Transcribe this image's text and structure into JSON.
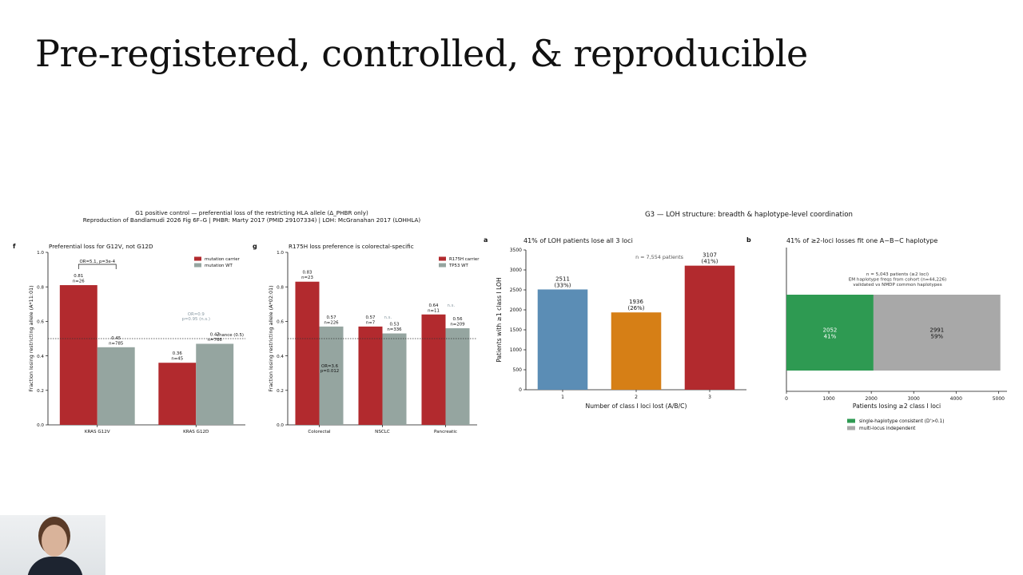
{
  "slide": {
    "title": "Pre-registered, controlled, & reproducible"
  },
  "g1": {
    "title": "G1 positive control — preferential loss of the restricting HLA allele (Δ_PHBR only)",
    "subtitle": "Reproduction of Bandlamudi 2026 Fig 6F–G  |  PHBR: Marty 2017 (PMID 29107334)  |  LOH: McGranahan 2017 (LOHHLA)"
  },
  "g3": {
    "title": "G3 — LOH structure: breadth & haplotype-level coordination"
  },
  "chart_data": [
    {
      "panel": "f",
      "type": "bar",
      "title": "Preferential loss for G12V, not G12D",
      "ylabel": "Fraction losing restricting allele (A*11:01)",
      "ylim": [
        0,
        1.0
      ],
      "yticks": [
        "0.0",
        "0.2",
        "0.4",
        "0.6",
        "0.8",
        "1.0"
      ],
      "categories": [
        "KRAS G12V",
        "KRAS G12D"
      ],
      "series": [
        {
          "name": "mutation carrier",
          "color": "#b22a2e",
          "values": [
            0.81,
            0.36
          ],
          "labels": [
            [
              "0.81",
              "n=26"
            ],
            [
              "0.36",
              "n=45"
            ]
          ]
        },
        {
          "name": "mutation WT",
          "color": "#95a5a0",
          "values": [
            0.45,
            0.47
          ],
          "labels": [
            [
              "0.45",
              "n=785"
            ],
            [
              "0.47",
              "n=766"
            ]
          ]
        }
      ],
      "reference": {
        "value": 0.5,
        "label": "chance (0.5)"
      },
      "annotations": [
        {
          "text": "OR=5.1, p=3e-4",
          "bracket": true
        },
        {
          "text": [
            "OR=0.9",
            "p=0.95 (n.s.)"
          ]
        }
      ]
    },
    {
      "panel": "g",
      "type": "bar",
      "title": "R175H loss preference is colorectal-specific",
      "ylabel": "Fraction losing restricting allele (A*02:01)",
      "ylim": [
        0,
        1.0
      ],
      "yticks": [
        "0.0",
        "0.2",
        "0.4",
        "0.6",
        "0.8",
        "1.0"
      ],
      "categories": [
        "Colorectal",
        "NSCLC",
        "Pancreatic"
      ],
      "series": [
        {
          "name": "R175H carrier",
          "color": "#b22a2e",
          "values": [
            0.83,
            0.57,
            0.64
          ],
          "labels": [
            [
              "0.83",
              "n=23"
            ],
            [
              "0.57",
              "n=7"
            ],
            [
              "0.64",
              "n=11"
            ]
          ]
        },
        {
          "name": "TP53 WT",
          "color": "#95a5a0",
          "values": [
            0.57,
            0.53,
            0.56
          ],
          "labels": [
            [
              "0.57",
              "n=226"
            ],
            [
              "0.53",
              "n=336"
            ],
            [
              "0.56",
              "n=209"
            ]
          ]
        }
      ],
      "reference": {
        "value": 0.5
      },
      "annotations": [
        {
          "text": [
            "OR=3.6",
            "p=0.012"
          ]
        },
        {
          "text": "n.s."
        },
        {
          "text": "n.s."
        }
      ]
    },
    {
      "panel": "a",
      "type": "bar",
      "title": "41% of LOH patients lose all 3 loci",
      "xlabel": "Number of class I loci lost (A/B/C)",
      "ylabel": "Patients with ≥1 class I LOH",
      "ylim": [
        0,
        3500
      ],
      "yticks": [
        "0",
        "500",
        "1000",
        "1500",
        "2000",
        "2500",
        "3000",
        "3500"
      ],
      "categories": [
        "1",
        "2",
        "3"
      ],
      "values": [
        2511,
        1936,
        3107
      ],
      "colors": [
        "#5b8db5",
        "#d67f16",
        "#b22a2e"
      ],
      "labels": [
        [
          "2511",
          "(33%)"
        ],
        [
          "1936",
          "(26%)"
        ],
        [
          "3107",
          "(41%)"
        ]
      ],
      "note": "n = 7,554 patients"
    },
    {
      "panel": "b",
      "type": "bar",
      "orientation": "horizontal-stacked",
      "title": "41% of ≥2-loci losses fit one A−B−C haplotype",
      "xlabel": "Patients losing ≥2 class I loci",
      "xlim": [
        0,
        5200
      ],
      "xticks": [
        "0",
        "1000",
        "2000",
        "3000",
        "4000",
        "5000"
      ],
      "segments": [
        {
          "name": "single-haplotype consistent (D'>0.1)",
          "color": "#2e9a52",
          "value": 2052,
          "labels": [
            "2052",
            "41%"
          ]
        },
        {
          "name": "multi-locus independent",
          "color": "#a8a8a8",
          "value": 2991,
          "labels": [
            "2991",
            "59%"
          ]
        }
      ],
      "note": [
        "n = 5,043 patients (≥2 loci)",
        "EM haplotype freqs from cohort (n=44,226)",
        "validated vs NMDP common haplotypes"
      ]
    }
  ]
}
